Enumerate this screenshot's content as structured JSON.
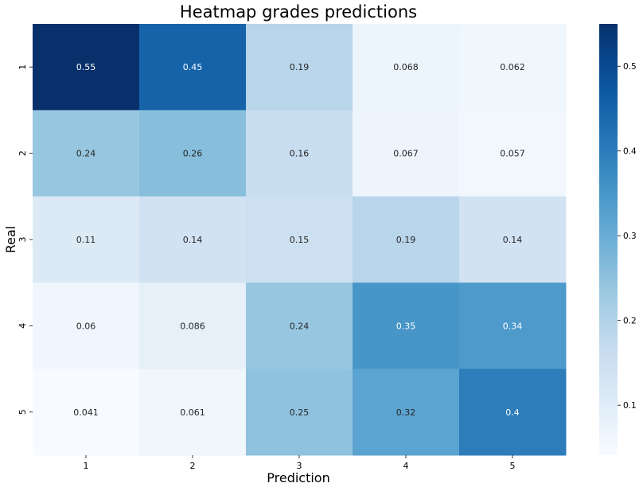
{
  "chart_data": {
    "type": "heatmap",
    "title": "Heatmap grades predictions",
    "xlabel": "Prediction",
    "ylabel": "Real",
    "x_categories": [
      "1",
      "2",
      "3",
      "4",
      "5"
    ],
    "y_categories": [
      "1",
      "2",
      "3",
      "4",
      "5"
    ],
    "values": [
      [
        0.55,
        0.45,
        0.19,
        0.068,
        0.062
      ],
      [
        0.24,
        0.26,
        0.16,
        0.067,
        0.057
      ],
      [
        0.11,
        0.14,
        0.15,
        0.19,
        0.14
      ],
      [
        0.06,
        0.086,
        0.24,
        0.35,
        0.34
      ],
      [
        0.041,
        0.061,
        0.25,
        0.32,
        0.4
      ]
    ],
    "value_labels": [
      [
        "0.55",
        "0.45",
        "0.19",
        "0.068",
        "0.062"
      ],
      [
        "0.24",
        "0.26",
        "0.16",
        "0.067",
        "0.057"
      ],
      [
        "0.11",
        "0.14",
        "0.15",
        "0.19",
        "0.14"
      ],
      [
        "0.06",
        "0.086",
        "0.24",
        "0.35",
        "0.34"
      ],
      [
        "0.041",
        "0.061",
        "0.25",
        "0.32",
        "0.4"
      ]
    ],
    "colormap": "Blues",
    "vmin": 0.041,
    "vmax": 0.55,
    "colorbar_ticks": [
      0.1,
      0.2,
      0.3,
      0.4,
      0.5
    ],
    "colorbar_tick_labels": [
      "0.1",
      "0.2",
      "0.3",
      "0.4",
      "0.5"
    ],
    "colors": {
      "low": "#f7fbff",
      "high": "#08306b",
      "text_dark": "#262626",
      "text_light": "#ffffff"
    }
  }
}
